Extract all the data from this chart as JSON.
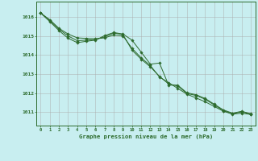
{
  "title": "Graphe pression niveau de la mer (hPa)",
  "background_color": "#c8eef0",
  "line_color": "#2d6b2d",
  "x_ticks": [
    0,
    1,
    2,
    3,
    4,
    5,
    6,
    7,
    8,
    9,
    10,
    11,
    12,
    13,
    14,
    15,
    16,
    17,
    18,
    19,
    20,
    21,
    22,
    23
  ],
  "xlim": [
    -0.5,
    23.5
  ],
  "ylim": [
    1010.3,
    1016.8
  ],
  "yticks": [
    1011,
    1012,
    1013,
    1014,
    1015,
    1016
  ],
  "line_smooth": [
    1016.2,
    1015.85,
    1015.4,
    1015.1,
    1014.9,
    1014.87,
    1014.85,
    1014.9,
    1015.05,
    1015.0,
    1014.35,
    1013.85,
    1013.45,
    1012.85,
    1012.55,
    1012.25,
    1011.95,
    1011.75,
    1011.55,
    1011.3,
    1011.05,
    1010.9,
    1010.95,
    1010.88
  ],
  "line_mid": [
    1016.2,
    1015.8,
    1015.35,
    1015.0,
    1014.75,
    1014.78,
    1014.82,
    1014.95,
    1015.15,
    1015.08,
    1014.25,
    1013.78,
    1013.38,
    1012.88,
    1012.48,
    1012.38,
    1011.98,
    1011.88,
    1011.68,
    1011.38,
    1011.08,
    1010.92,
    1011.02,
    1010.9
  ],
  "line_zigzag": [
    1016.2,
    1015.75,
    1015.28,
    1014.88,
    1014.65,
    1014.72,
    1014.78,
    1015.02,
    1015.18,
    1015.1,
    1014.78,
    1014.15,
    1013.52,
    1013.58,
    1012.42,
    1012.42,
    1012.02,
    1011.92,
    1011.72,
    1011.42,
    1011.12,
    1010.95,
    1011.05,
    1010.92
  ]
}
